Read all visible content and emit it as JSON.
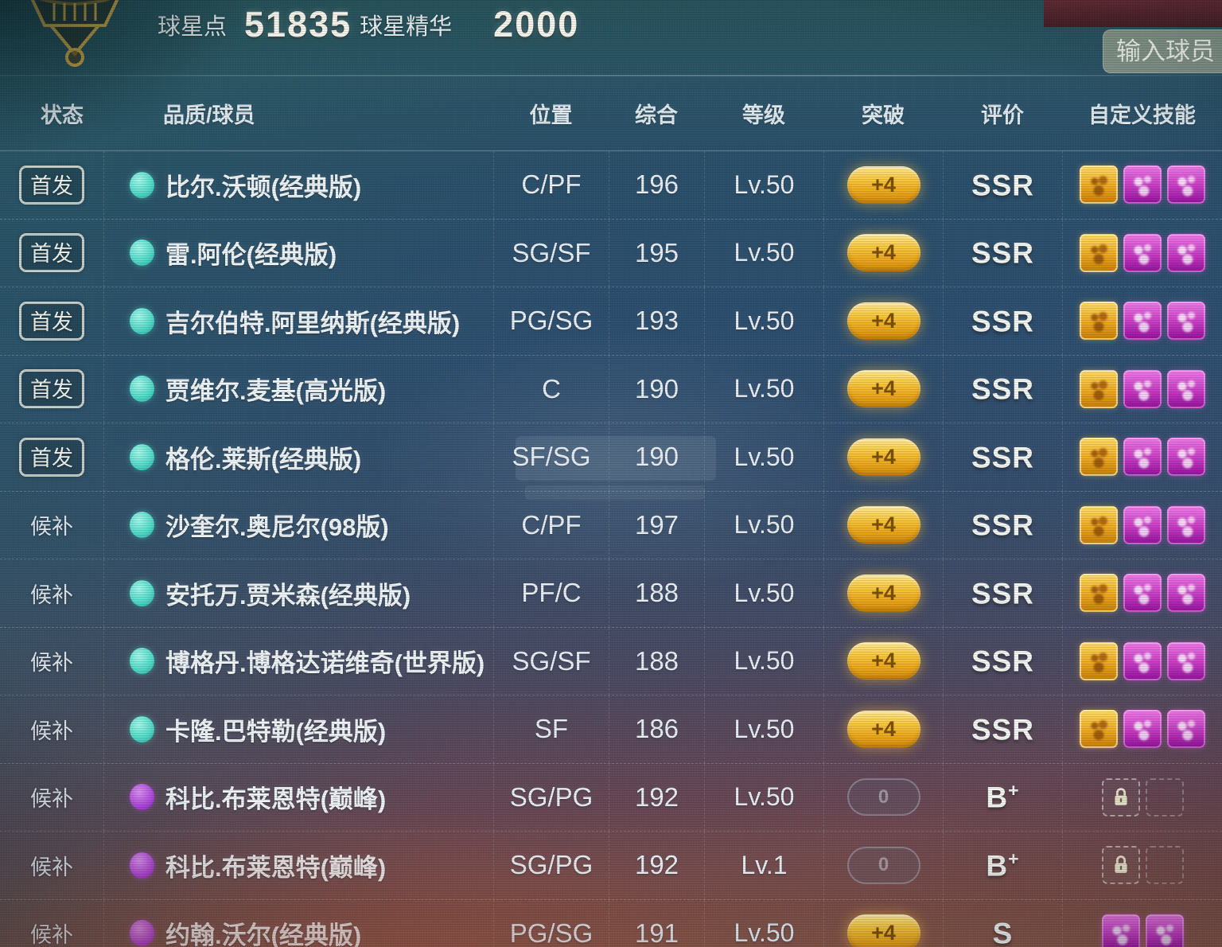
{
  "top_bar": {
    "star_points_label": "球星点",
    "star_points_value": "51835",
    "star_essence_label": "球星精华",
    "star_essence_value": "2000",
    "search_placeholder": "输入球员"
  },
  "table": {
    "headers": [
      "状态",
      "品质/球员",
      "位置",
      "综合",
      "等级",
      "突破",
      "评价",
      "自定义技能"
    ],
    "rows": [
      {
        "status": "首发",
        "status_type": "starter",
        "dot": "teal",
        "name": "比尔.沃顿(经典版)",
        "position": "C/PF",
        "overall": "196",
        "level": "Lv.50",
        "breakthrough": "+4",
        "breakthrough_type": "gold",
        "rating_main": "SSR",
        "rating_sup": "",
        "skills": [
          "gold",
          "magenta",
          "magenta"
        ]
      },
      {
        "status": "首发",
        "status_type": "starter",
        "dot": "teal",
        "name": "雷.阿伦(经典版)",
        "position": "SG/SF",
        "overall": "195",
        "level": "Lv.50",
        "breakthrough": "+4",
        "breakthrough_type": "gold",
        "rating_main": "SSR",
        "rating_sup": "",
        "skills": [
          "gold",
          "magenta",
          "magenta"
        ]
      },
      {
        "status": "首发",
        "status_type": "starter",
        "dot": "teal",
        "name": "吉尔伯特.阿里纳斯(经典版)",
        "position": "PG/SG",
        "overall": "193",
        "level": "Lv.50",
        "breakthrough": "+4",
        "breakthrough_type": "gold",
        "rating_main": "SSR",
        "rating_sup": "",
        "skills": [
          "gold",
          "magenta",
          "magenta"
        ]
      },
      {
        "status": "首发",
        "status_type": "starter",
        "dot": "teal",
        "name": "贾维尔.麦基(高光版)",
        "position": "C",
        "overall": "190",
        "level": "Lv.50",
        "breakthrough": "+4",
        "breakthrough_type": "gold",
        "rating_main": "SSR",
        "rating_sup": "",
        "skills": [
          "gold",
          "magenta",
          "magenta"
        ]
      },
      {
        "status": "首发",
        "status_type": "starter",
        "dot": "teal",
        "name": "格伦.莱斯(经典版)",
        "position": "SF/SG",
        "overall": "190",
        "level": "Lv.50",
        "breakthrough": "+4",
        "breakthrough_type": "gold",
        "rating_main": "SSR",
        "rating_sup": "",
        "skills": [
          "gold",
          "magenta",
          "magenta"
        ]
      },
      {
        "status": "候补",
        "status_type": "bench",
        "dot": "teal",
        "name": "沙奎尔.奥尼尔(98版)",
        "position": "C/PF",
        "overall": "197",
        "level": "Lv.50",
        "breakthrough": "+4",
        "breakthrough_type": "gold",
        "rating_main": "SSR",
        "rating_sup": "",
        "skills": [
          "gold",
          "magenta",
          "magenta"
        ]
      },
      {
        "status": "候补",
        "status_type": "bench",
        "dot": "teal",
        "name": "安托万.贾米森(经典版)",
        "position": "PF/C",
        "overall": "188",
        "level": "Lv.50",
        "breakthrough": "+4",
        "breakthrough_type": "gold",
        "rating_main": "SSR",
        "rating_sup": "",
        "skills": [
          "gold",
          "magenta",
          "magenta"
        ]
      },
      {
        "status": "候补",
        "status_type": "bench",
        "dot": "teal",
        "name": "博格丹.博格达诺维奇(世界版)",
        "position": "SG/SF",
        "overall": "188",
        "level": "Lv.50",
        "breakthrough": "+4",
        "breakthrough_type": "gold",
        "rating_main": "SSR",
        "rating_sup": "",
        "skills": [
          "gold",
          "magenta",
          "magenta"
        ]
      },
      {
        "status": "候补",
        "status_type": "bench",
        "dot": "teal",
        "name": "卡隆.巴特勒(经典版)",
        "position": "SF",
        "overall": "186",
        "level": "Lv.50",
        "breakthrough": "+4",
        "breakthrough_type": "gold",
        "rating_main": "SSR",
        "rating_sup": "",
        "skills": [
          "gold",
          "magenta",
          "magenta"
        ]
      },
      {
        "status": "候补",
        "status_type": "bench",
        "dot": "purple",
        "name": "科比.布莱恩特(巅峰)",
        "position": "SG/PG",
        "overall": "192",
        "level": "Lv.50",
        "breakthrough": "0",
        "breakthrough_type": "grey",
        "rating_main": "B",
        "rating_sup": "+",
        "skills": [
          "lock",
          "empty"
        ]
      },
      {
        "status": "候补",
        "status_type": "bench",
        "dot": "purple",
        "name": "科比.布莱恩特(巅峰)",
        "position": "SG/PG",
        "overall": "192",
        "level": "Lv.1",
        "breakthrough": "0",
        "breakthrough_type": "grey",
        "rating_main": "B",
        "rating_sup": "+",
        "skills": [
          "lock",
          "empty"
        ]
      },
      {
        "status": "候补",
        "status_type": "bench",
        "dot": "purple",
        "name": "约翰.沃尔(经典版)",
        "position": "PG/SG",
        "overall": "191",
        "level": "Lv.50",
        "breakthrough": "+4",
        "breakthrough_type": "gold",
        "rating_main": "S",
        "rating_sup": "",
        "skills": [
          "magenta",
          "magenta"
        ]
      }
    ]
  },
  "colors": {
    "accent_gold": "#f0b224",
    "skill_magenta": "#c437c0",
    "dot_teal": "#50dac7",
    "dot_purple": "#b44ae0",
    "rating_text": "#f3f5f1"
  }
}
